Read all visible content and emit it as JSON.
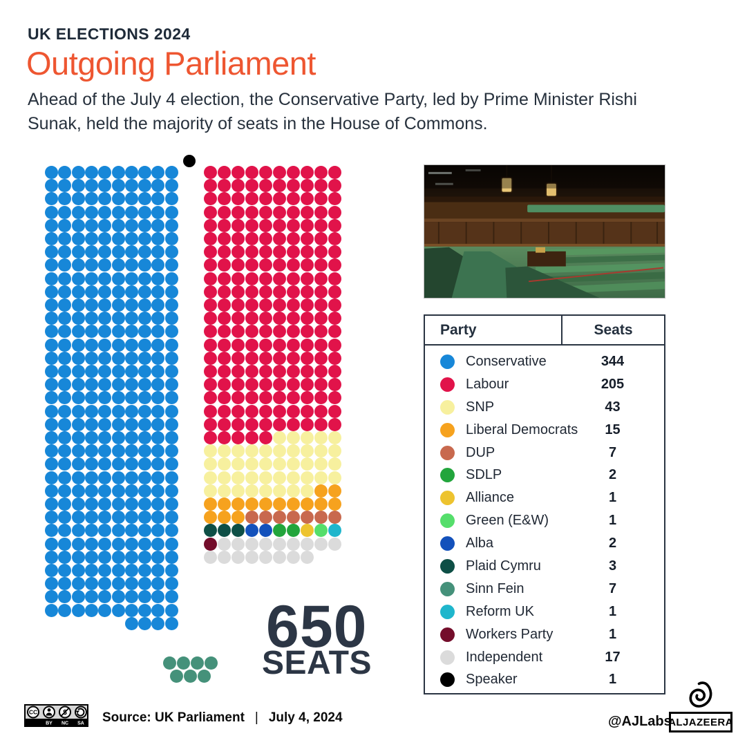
{
  "header": {
    "kicker": "UK ELECTIONS 2024",
    "title": "Outgoing Parliament",
    "subtitle": "Ahead of the July 4 election, the Conservative Party, led by Prime Minister Rishi Sunak, held the majority of seats in the House of Commons."
  },
  "chart_data": {
    "type": "table",
    "layout": "parliament-dot-matrix",
    "title": "Outgoing Parliament",
    "total_seats": 650,
    "categories": [
      "Conservative",
      "Labour",
      "SNP",
      "Liberal Democrats",
      "DUP",
      "SDLP",
      "Alliance",
      "Green (E&W)",
      "Alba",
      "Plaid Cymru",
      "Sinn Fein",
      "Reform UK",
      "Workers Party",
      "Independent",
      "Speaker"
    ],
    "values": [
      344,
      205,
      43,
      15,
      7,
      2,
      1,
      1,
      2,
      3,
      7,
      1,
      1,
      17,
      1
    ],
    "colors": [
      "#1787D8",
      "#E1134A",
      "#F7F09E",
      "#F6A21E",
      "#C8694E",
      "#22A53C",
      "#EDC32F",
      "#55DE6B",
      "#1351BB",
      "#0E4F46",
      "#45917A",
      "#1FB6CC",
      "#740D2B",
      "#DBDBDB",
      "#000000"
    ],
    "legend_position": "right",
    "notes": "Dot matrix of 650 seats; Conservative block left, opposition block right, Speaker dot on aisle, Sinn Fein shown detached below"
  },
  "parties": {
    "conservative": {
      "name": "Conservative",
      "color": "#1787D8"
    },
    "labour": {
      "name": "Labour",
      "color": "#E1134A"
    },
    "snp": {
      "name": "SNP",
      "color": "#F7F09E"
    },
    "libdem": {
      "name": "Liberal Democrats",
      "color": "#F6A21E"
    },
    "dup": {
      "name": "DUP",
      "color": "#C8694E"
    },
    "sdlp": {
      "name": "SDLP",
      "color": "#22A53C"
    },
    "alliance": {
      "name": "Alliance",
      "color": "#EDC32F"
    },
    "green": {
      "name": "Green (E&W)",
      "color": "#55DE6B"
    },
    "alba": {
      "name": "Alba",
      "color": "#1351BB"
    },
    "plaid": {
      "name": "Plaid Cymru",
      "color": "#0E4F46"
    },
    "sinnfein": {
      "name": "Sinn Fein",
      "color": "#45917A"
    },
    "reform": {
      "name": "Reform UK",
      "color": "#1FB6CC"
    },
    "workers": {
      "name": "Workers Party",
      "color": "#740D2B"
    },
    "independent": {
      "name": "Independent",
      "color": "#DBDBDB"
    },
    "speaker": {
      "name": "Speaker",
      "color": "#000000"
    }
  },
  "parliament": {
    "columns": 10,
    "left_block": [
      {
        "party": "conservative",
        "count": 344
      }
    ],
    "right_block": [
      {
        "party": "labour",
        "count": 205
      },
      {
        "party": "snp",
        "count": 43
      },
      {
        "party": "libdem",
        "count": 15
      },
      {
        "party": "dup",
        "count": 7
      },
      {
        "party": "plaid",
        "count": 3
      },
      {
        "party": "alba",
        "count": 2
      },
      {
        "party": "sdlp",
        "count": 2
      },
      {
        "party": "alliance",
        "count": 1
      },
      {
        "party": "green",
        "count": 1
      },
      {
        "party": "reform",
        "count": 1
      },
      {
        "party": "workers",
        "count": 1
      },
      {
        "party": "independent",
        "count": 17
      }
    ],
    "detached_block": {
      "party": "sinnfein",
      "count": 7,
      "rows": [
        4,
        3
      ]
    },
    "big_number": "650",
    "big_label": "SEATS"
  },
  "table": {
    "header_party": "Party",
    "header_seats": "Seats",
    "rows": [
      {
        "party": "conservative",
        "label": "Conservative",
        "seats": "344"
      },
      {
        "party": "labour",
        "label": "Labour",
        "seats": "205"
      },
      {
        "party": "snp",
        "label": "SNP",
        "seats": "43"
      },
      {
        "party": "libdem",
        "label": "Liberal Democrats",
        "seats": "15"
      },
      {
        "party": "dup",
        "label": "DUP",
        "seats": "7"
      },
      {
        "party": "sdlp",
        "label": "SDLP",
        "seats": "2"
      },
      {
        "party": "alliance",
        "label": "Alliance",
        "seats": "1"
      },
      {
        "party": "green",
        "label": "Green (E&W)",
        "seats": "1"
      },
      {
        "party": "alba",
        "label": "Alba",
        "seats": "2"
      },
      {
        "party": "plaid",
        "label": "Plaid Cymru",
        "seats": "3"
      },
      {
        "party": "sinnfein",
        "label": "Sinn Fein",
        "seats": "7"
      },
      {
        "party": "reform",
        "label": "Reform UK",
        "seats": "1"
      },
      {
        "party": "workers",
        "label": "Workers Party",
        "seats": "1"
      },
      {
        "party": "independent",
        "label": "Independent",
        "seats": "17"
      },
      {
        "party": "speaker",
        "label": "Speaker",
        "seats": "1"
      }
    ]
  },
  "photo": {
    "alt": "Interior of the House of Commons with empty green benches"
  },
  "footer": {
    "license_letters": [
      "BY",
      "NC",
      "SA"
    ],
    "source_label": "Source: UK Parliament",
    "separator": "|",
    "date": "July 4, 2024",
    "credit": "@AJLabs",
    "logo_text": "ALJAZEERA"
  },
  "accent_colors": {
    "title_orange": "#EE5631",
    "navy": "#232F3D"
  }
}
